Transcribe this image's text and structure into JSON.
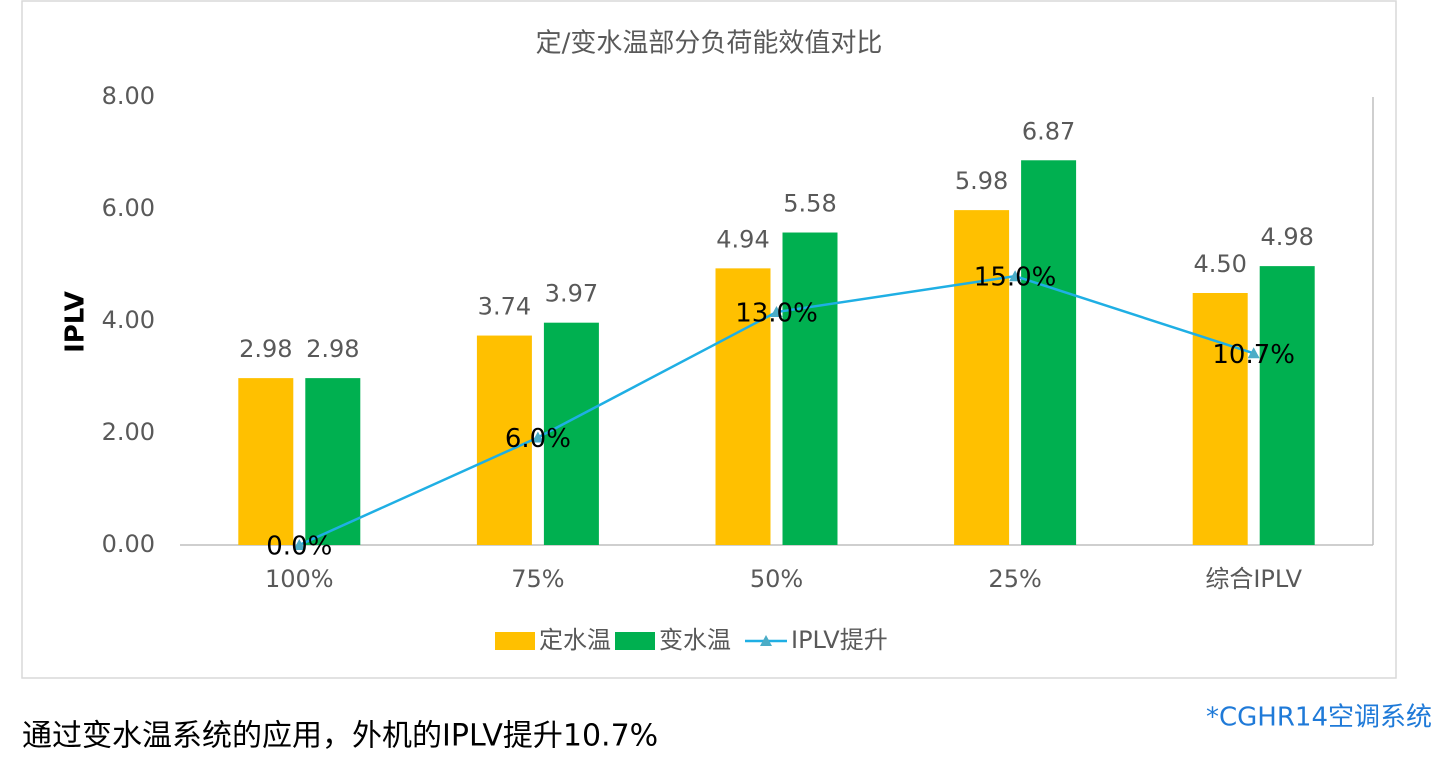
{
  "chart_data": {
    "type": "bar",
    "title": "定/变水温部分负荷能效值对比",
    "y_label": "IPLV",
    "categories": [
      "100%",
      "75%",
      "50%",
      "25%",
      "综合IPLV"
    ],
    "series": [
      {
        "name": "定水温",
        "color": "#ffc000",
        "values": [
          2.98,
          3.74,
          4.94,
          5.98,
          4.5
        ],
        "value_labels": [
          "2.98",
          "3.74",
          "4.94",
          "5.98",
          "4.50"
        ]
      },
      {
        "name": "变水温",
        "color": "#00b050",
        "values": [
          2.98,
          3.97,
          5.58,
          6.87,
          4.98
        ],
        "value_labels": [
          "2.98",
          "3.97",
          "5.58",
          "6.87",
          "4.98"
        ]
      },
      {
        "name": "IPLV提升",
        "color": "#1fafe4",
        "type": "line",
        "axis": "y2",
        "values": [
          0,
          6,
          13,
          15,
          10.7
        ],
        "value_labels": [
          "0.0%",
          "6.0%",
          "13.0%",
          "15.0%",
          "10.7%"
        ]
      }
    ],
    "ylim": [
      0,
      8
    ],
    "yticks": [
      {
        "value": 0,
        "label": "0.00"
      },
      {
        "value": 2,
        "label": "2.00"
      },
      {
        "value": 4,
        "label": "4.00"
      },
      {
        "value": 6,
        "label": "6.00"
      },
      {
        "value": 8,
        "label": "8.00"
      }
    ],
    "y2lim": [
      0,
      25
    ],
    "legend": "bottom"
  },
  "caption": "通过变水温系统的应用，外机的IPLV提升10.7%",
  "note": "*CGHR14空调系统"
}
